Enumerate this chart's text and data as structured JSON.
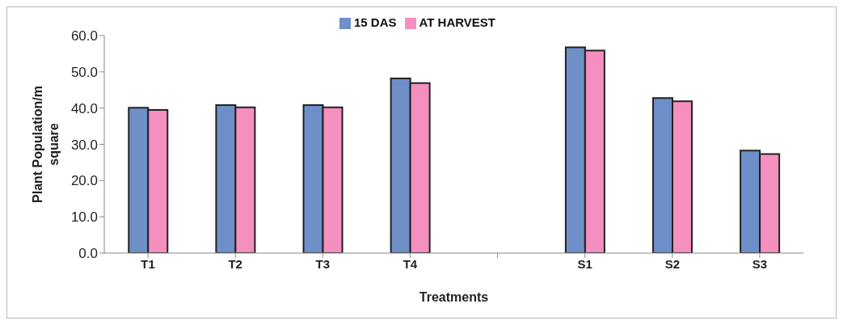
{
  "chart_data": {
    "type": "bar",
    "xlabel": "Treatments",
    "ylabel": "Plant Population/m square",
    "categories": [
      "T1",
      "T2",
      "T3",
      "T4",
      null,
      "S1",
      "S2",
      "S3"
    ],
    "series": [
      {
        "name": "15 DAS",
        "color": "#6f8fc8",
        "values": [
          40.1,
          40.8,
          40.8,
          48.2,
          null,
          56.8,
          42.8,
          28.3
        ]
      },
      {
        "name": "AT HARVEST",
        "color": "#f48fbf",
        "values": [
          39.5,
          40.2,
          40.2,
          46.9,
          null,
          55.9,
          41.9,
          27.3
        ]
      }
    ],
    "ylim": [
      0,
      60
    ],
    "yticks": [
      {
        "value": 0,
        "label": "0.0"
      },
      {
        "value": 10,
        "label": "10.0"
      },
      {
        "value": 20,
        "label": "20.0"
      },
      {
        "value": 30,
        "label": "30.0"
      },
      {
        "value": 40,
        "label": "40.0"
      },
      {
        "value": 50,
        "label": "50.0"
      },
      {
        "value": 60,
        "label": "60.0"
      }
    ],
    "grid": false,
    "legend": "top"
  }
}
